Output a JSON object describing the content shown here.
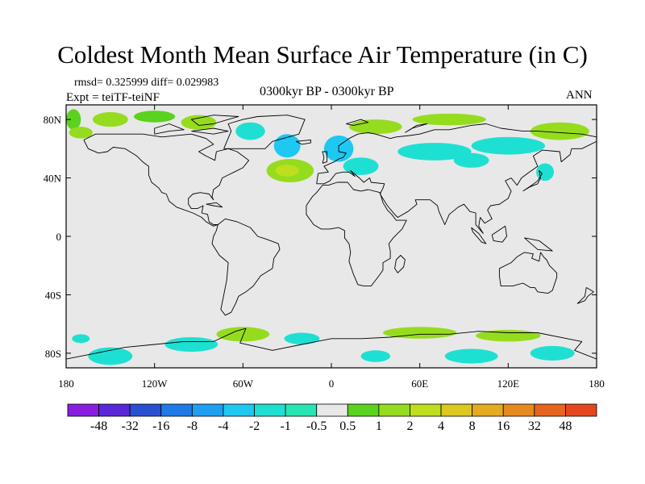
{
  "title": "Coldest Month Mean Surface Air Temperature (in C)",
  "stats": "rmsd= 0.325999  diff= 0.029983",
  "experiment": "Expt = teiTF-teiNF",
  "period": "0300kyr BP - 0300kyr BP",
  "season": "ANN",
  "map": {
    "lon_range": [
      -180,
      180
    ],
    "lat_range": [
      -90,
      90
    ],
    "background_color": "#e8e8e8",
    "lon_ticks": [
      {
        "value": -180,
        "label": "180"
      },
      {
        "value": -120,
        "label": "120W"
      },
      {
        "value": -60,
        "label": "60W"
      },
      {
        "value": 0,
        "label": "0"
      },
      {
        "value": 60,
        "label": "60E"
      },
      {
        "value": 120,
        "label": "120E"
      },
      {
        "value": 180,
        "label": "180"
      }
    ],
    "lat_ticks": [
      {
        "value": 80,
        "label": "80N"
      },
      {
        "value": 40,
        "label": "40N"
      },
      {
        "value": 0,
        "label": "0"
      },
      {
        "value": -40,
        "label": "40S"
      },
      {
        "value": -80,
        "label": "80S"
      }
    ]
  },
  "colorbar": {
    "colors": [
      "#8a1ee0",
      "#5a28d8",
      "#2850d0",
      "#1e7ae6",
      "#1ea0f0",
      "#1ec8f0",
      "#1ee0d2",
      "#28e6b4",
      "#e8e8e8",
      "#5ad21e",
      "#96dc1e",
      "#bede1e",
      "#dcc81e",
      "#e6aa1e",
      "#e68a1e",
      "#e6641e",
      "#e6461e"
    ],
    "labels": [
      "-48",
      "-32",
      "-16",
      "-8",
      "-4",
      "-2",
      "-1",
      "-0.5",
      "0.5",
      "1",
      "2",
      "4",
      "8",
      "16",
      "32",
      "48"
    ]
  },
  "anomaly_patches": [
    {
      "lon": -175,
      "lat": 80,
      "rx": 5,
      "ry": 7,
      "color": "#5ad21e"
    },
    {
      "lon": -150,
      "lat": 80,
      "rx": 12,
      "ry": 5,
      "color": "#96dc1e"
    },
    {
      "lon": -120,
      "lat": 82,
      "rx": 14,
      "ry": 4,
      "color": "#5ad21e"
    },
    {
      "lon": -170,
      "lat": 71,
      "rx": 8,
      "ry": 4,
      "color": "#96dc1e"
    },
    {
      "lon": -90,
      "lat": 78,
      "rx": 12,
      "ry": 5,
      "color": "#96dc1e"
    },
    {
      "lon": -55,
      "lat": 72,
      "rx": 10,
      "ry": 6,
      "color": "#1ee0d2"
    },
    {
      "lon": -30,
      "lat": 62,
      "rx": 9,
      "ry": 8,
      "color": "#1ec8f0"
    },
    {
      "lon": -28,
      "lat": 45,
      "rx": 16,
      "ry": 8,
      "color": "#96dc1e"
    },
    {
      "lon": -30,
      "lat": 45,
      "rx": 8,
      "ry": 4,
      "color": "#bede1e"
    },
    {
      "lon": 5,
      "lat": 60,
      "rx": 10,
      "ry": 9,
      "color": "#1ec8f0"
    },
    {
      "lon": 20,
      "lat": 48,
      "rx": 12,
      "ry": 6,
      "color": "#1ee0d2"
    },
    {
      "lon": 30,
      "lat": 75,
      "rx": 18,
      "ry": 5,
      "color": "#96dc1e"
    },
    {
      "lon": 70,
      "lat": 58,
      "rx": 25,
      "ry": 6,
      "color": "#1ee0d2"
    },
    {
      "lon": 95,
      "lat": 52,
      "rx": 12,
      "ry": 5,
      "color": "#1ee0d2"
    },
    {
      "lon": 120,
      "lat": 62,
      "rx": 25,
      "ry": 6,
      "color": "#1ee0d2"
    },
    {
      "lon": 155,
      "lat": 72,
      "rx": 20,
      "ry": 6,
      "color": "#96dc1e"
    },
    {
      "lon": 80,
      "lat": 80,
      "rx": 25,
      "ry": 4,
      "color": "#96dc1e"
    },
    {
      "lon": 145,
      "lat": 44,
      "rx": 6,
      "ry": 6,
      "color": "#1ee0d2"
    },
    {
      "lon": -150,
      "lat": -82,
      "rx": 15,
      "ry": 6,
      "color": "#1ee0d2"
    },
    {
      "lon": -95,
      "lat": -74,
      "rx": 18,
      "ry": 5,
      "color": "#1ee0d2"
    },
    {
      "lon": -60,
      "lat": -67,
      "rx": 18,
      "ry": 5,
      "color": "#96dc1e"
    },
    {
      "lon": -20,
      "lat": -70,
      "rx": 12,
      "ry": 4,
      "color": "#1ee0d2"
    },
    {
      "lon": 60,
      "lat": -66,
      "rx": 25,
      "ry": 4,
      "color": "#96dc1e"
    },
    {
      "lon": 120,
      "lat": -68,
      "rx": 22,
      "ry": 4,
      "color": "#96dc1e"
    },
    {
      "lon": 95,
      "lat": -82,
      "rx": 18,
      "ry": 5,
      "color": "#1ee0d2"
    },
    {
      "lon": 150,
      "lat": -80,
      "rx": 15,
      "ry": 5,
      "color": "#1ee0d2"
    },
    {
      "lon": -170,
      "lat": -70,
      "rx": 6,
      "ry": 3,
      "color": "#1ee0d2"
    },
    {
      "lon": 30,
      "lat": -82,
      "rx": 10,
      "ry": 4,
      "color": "#1ee0d2"
    }
  ],
  "coastlines": [
    [
      [
        -168,
        66
      ],
      [
        -160,
        70
      ],
      [
        -140,
        70
      ],
      [
        -128,
        70
      ],
      [
        -115,
        68
      ],
      [
        -95,
        70
      ],
      [
        -85,
        67
      ],
      [
        -80,
        63
      ],
      [
        -90,
        58
      ],
      [
        -85,
        55
      ],
      [
        -79,
        52
      ],
      [
        -78,
        58
      ],
      [
        -70,
        60
      ],
      [
        -64,
        58
      ],
      [
        -60,
        55
      ],
      [
        -56,
        52
      ],
      [
        -60,
        47
      ],
      [
        -66,
        44
      ],
      [
        -70,
        42
      ],
      [
        -74,
        40
      ],
      [
        -76,
        35
      ],
      [
        -80,
        32
      ],
      [
        -81,
        27
      ],
      [
        -80,
        25
      ],
      [
        -83,
        29
      ],
      [
        -89,
        30
      ],
      [
        -94,
        29
      ],
      [
        -97,
        26
      ],
      [
        -97,
        22
      ],
      [
        -95,
        19
      ],
      [
        -91,
        19
      ],
      [
        -87,
        21
      ],
      [
        -88,
        16
      ],
      [
        -84,
        15
      ],
      [
        -83,
        10
      ],
      [
        -80,
        8
      ],
      [
        -77,
        8
      ],
      [
        -80,
        7
      ],
      [
        -85,
        10
      ],
      [
        -88,
        13
      ],
      [
        -94,
        16
      ],
      [
        -105,
        20
      ],
      [
        -110,
        24
      ],
      [
        -112,
        29
      ],
      [
        -115,
        30
      ],
      [
        -117,
        33
      ],
      [
        -122,
        37
      ],
      [
        -124,
        42
      ],
      [
        -124,
        48
      ],
      [
        -128,
        51
      ],
      [
        -132,
        55
      ],
      [
        -140,
        60
      ],
      [
        -148,
        61
      ],
      [
        -152,
        58
      ],
      [
        -158,
        57
      ],
      [
        -165,
        60
      ],
      [
        -168,
        66
      ]
    ],
    [
      [
        -77,
        8
      ],
      [
        -72,
        12
      ],
      [
        -64,
        10
      ],
      [
        -55,
        6
      ],
      [
        -50,
        0
      ],
      [
        -44,
        -2
      ],
      [
        -36,
        -5
      ],
      [
        -35,
        -9
      ],
      [
        -39,
        -15
      ],
      [
        -40,
        -22
      ],
      [
        -48,
        -27
      ],
      [
        -53,
        -34
      ],
      [
        -58,
        -38
      ],
      [
        -63,
        -41
      ],
      [
        -65,
        -46
      ],
      [
        -68,
        -52
      ],
      [
        -72,
        -54
      ],
      [
        -75,
        -50
      ],
      [
        -73,
        -40
      ],
      [
        -71,
        -30
      ],
      [
        -70,
        -18
      ],
      [
        -76,
        -13
      ],
      [
        -81,
        -5
      ],
      [
        -80,
        0
      ],
      [
        -78,
        4
      ],
      [
        -77,
        8
      ]
    ],
    [
      [
        -10,
        36
      ],
      [
        -9,
        43
      ],
      [
        -2,
        44
      ],
      [
        -5,
        48
      ],
      [
        2,
        51
      ],
      [
        5,
        53
      ],
      [
        8,
        54
      ],
      [
        10,
        57
      ],
      [
        5,
        58
      ],
      [
        5,
        62
      ],
      [
        12,
        67
      ],
      [
        18,
        70
      ],
      [
        25,
        71
      ],
      [
        30,
        70
      ],
      [
        40,
        67
      ],
      [
        44,
        68
      ],
      [
        53,
        69
      ],
      [
        60,
        70
      ],
      [
        70,
        73
      ],
      [
        80,
        73
      ],
      [
        95,
        76
      ],
      [
        105,
        77
      ],
      [
        115,
        74
      ],
      [
        130,
        72
      ],
      [
        140,
        72
      ],
      [
        155,
        71
      ],
      [
        170,
        70
      ],
      [
        180,
        68
      ],
      [
        180,
        65
      ],
      [
        170,
        60
      ],
      [
        163,
        60
      ],
      [
        162,
        56
      ],
      [
        156,
        51
      ],
      [
        155,
        58
      ],
      [
        143,
        59
      ],
      [
        137,
        55
      ],
      [
        140,
        48
      ],
      [
        133,
        43
      ],
      [
        129,
        40
      ],
      [
        126,
        35
      ],
      [
        122,
        40
      ],
      [
        118,
        38
      ],
      [
        122,
        31
      ],
      [
        120,
        26
      ],
      [
        114,
        22
      ],
      [
        108,
        21
      ],
      [
        106,
        18
      ],
      [
        109,
        12
      ],
      [
        104,
        9
      ],
      [
        101,
        13
      ],
      [
        100,
        7
      ],
      [
        103,
        2
      ],
      [
        98,
        8
      ],
      [
        98,
        16
      ],
      [
        94,
        17
      ],
      [
        90,
        22
      ],
      [
        86,
        20
      ],
      [
        80,
        15
      ],
      [
        77,
        8
      ],
      [
        73,
        17
      ],
      [
        72,
        21
      ],
      [
        67,
        25
      ],
      [
        57,
        25
      ],
      [
        58,
        22
      ],
      [
        52,
        17
      ],
      [
        45,
        13
      ],
      [
        43,
        15
      ],
      [
        38,
        21
      ],
      [
        33,
        29
      ],
      [
        35,
        33
      ],
      [
        36,
        36
      ],
      [
        27,
        37
      ],
      [
        26,
        40
      ],
      [
        22,
        37
      ],
      [
        19,
        40
      ],
      [
        13,
        45
      ],
      [
        16,
        41
      ],
      [
        12,
        44
      ],
      [
        8,
        44
      ],
      [
        3,
        43
      ],
      [
        -1,
        38
      ],
      [
        -5,
        36
      ],
      [
        -10,
        36
      ]
    ],
    [
      [
        -17,
        21
      ],
      [
        -17,
        15
      ],
      [
        -12,
        8
      ],
      [
        -7,
        5
      ],
      [
        -1,
        5
      ],
      [
        5,
        6
      ],
      [
        9,
        4
      ],
      [
        9,
        -1
      ],
      [
        12,
        -5
      ],
      [
        13,
        -11
      ],
      [
        12,
        -17
      ],
      [
        15,
        -26
      ],
      [
        18,
        -33
      ],
      [
        22,
        -34
      ],
      [
        27,
        -34
      ],
      [
        33,
        -26
      ],
      [
        35,
        -23
      ],
      [
        35,
        -18
      ],
      [
        40,
        -15
      ],
      [
        40,
        -10
      ],
      [
        39,
        -5
      ],
      [
        42,
        -1
      ],
      [
        48,
        5
      ],
      [
        51,
        11
      ],
      [
        44,
        11
      ],
      [
        41,
        15
      ],
      [
        38,
        18
      ],
      [
        35,
        23
      ],
      [
        33,
        30
      ],
      [
        25,
        32
      ],
      [
        20,
        31
      ],
      [
        15,
        32
      ],
      [
        11,
        37
      ],
      [
        4,
        37
      ],
      [
        -2,
        35
      ],
      [
        -6,
        35
      ],
      [
        -10,
        30
      ],
      [
        -13,
        27
      ],
      [
        -17,
        21
      ]
    ],
    [
      [
        114,
        -22
      ],
      [
        114,
        -27
      ],
      [
        115,
        -34
      ],
      [
        123,
        -34
      ],
      [
        130,
        -32
      ],
      [
        135,
        -35
      ],
      [
        138,
        -35
      ],
      [
        140,
        -38
      ],
      [
        147,
        -39
      ],
      [
        150,
        -37
      ],
      [
        153,
        -28
      ],
      [
        153,
        -25
      ],
      [
        148,
        -20
      ],
      [
        146,
        -16
      ],
      [
        144,
        -14
      ],
      [
        142,
        -11
      ],
      [
        141,
        -17
      ],
      [
        136,
        -15
      ],
      [
        137,
        -12
      ],
      [
        131,
        -11
      ],
      [
        126,
        -14
      ],
      [
        122,
        -18
      ],
      [
        114,
        -22
      ]
    ],
    [
      [
        -73,
        60
      ],
      [
        -60,
        60
      ],
      [
        -45,
        60
      ],
      [
        -40,
        65
      ],
      [
        -22,
        70
      ],
      [
        -20,
        75
      ],
      [
        -18,
        80
      ],
      [
        -30,
        83
      ],
      [
        -50,
        82
      ],
      [
        -60,
        80
      ],
      [
        -70,
        77
      ],
      [
        -68,
        72
      ],
      [
        -73,
        60
      ]
    ],
    [
      [
        44,
        -16
      ],
      [
        47,
        -13
      ],
      [
        50,
        -16
      ],
      [
        49,
        -21
      ],
      [
        45,
        -25
      ],
      [
        43,
        -22
      ],
      [
        44,
        -16
      ]
    ],
    [
      [
        -6,
        50
      ],
      [
        -3,
        51
      ],
      [
        -3,
        58
      ],
      [
        -6,
        58
      ],
      [
        -5,
        54
      ],
      [
        -6,
        50
      ]
    ],
    [
      [
        -24,
        65
      ],
      [
        -14,
        66
      ],
      [
        -14,
        64
      ],
      [
        -20,
        63
      ],
      [
        -24,
        65
      ]
    ],
    [
      [
        130,
        31
      ],
      [
        135,
        34
      ],
      [
        140,
        36
      ],
      [
        142,
        40
      ],
      [
        141,
        45
      ],
      [
        143,
        43
      ],
      [
        140,
        38
      ],
      [
        136,
        35
      ],
      [
        130,
        31
      ]
    ],
    [
      [
        95,
        6
      ],
      [
        100,
        2
      ],
      [
        105,
        -5
      ],
      [
        102,
        -4
      ],
      [
        96,
        3
      ],
      [
        95,
        6
      ]
    ],
    [
      [
        109,
        1
      ],
      [
        118,
        7
      ],
      [
        119,
        0
      ],
      [
        116,
        -4
      ],
      [
        110,
        -3
      ],
      [
        109,
        1
      ]
    ],
    [
      [
        131,
        -1
      ],
      [
        141,
        -3
      ],
      [
        150,
        -10
      ],
      [
        140,
        -9
      ],
      [
        131,
        -1
      ]
    ],
    [
      [
        173,
        -35
      ],
      [
        178,
        -38
      ],
      [
        174,
        -41
      ],
      [
        172,
        -44
      ],
      [
        167,
        -46
      ],
      [
        172,
        -41
      ],
      [
        173,
        -35
      ]
    ],
    [
      [
        -180,
        -84
      ],
      [
        -160,
        -80
      ],
      [
        -140,
        -76
      ],
      [
        -120,
        -74
      ],
      [
        -100,
        -72
      ],
      [
        -80,
        -72
      ],
      [
        -65,
        -65
      ],
      [
        -58,
        -63
      ],
      [
        -60,
        -68
      ],
      [
        -62,
        -73
      ],
      [
        -40,
        -78
      ],
      [
        -20,
        -74
      ],
      [
        0,
        -70
      ],
      [
        20,
        -70
      ],
      [
        40,
        -69
      ],
      [
        60,
        -67
      ],
      [
        80,
        -67
      ],
      [
        100,
        -65
      ],
      [
        120,
        -66
      ],
      [
        140,
        -66
      ],
      [
        160,
        -70
      ],
      [
        170,
        -72
      ],
      [
        165,
        -78
      ],
      [
        180,
        -84
      ]
    ],
    [
      [
        -80,
        77
      ],
      [
        -70,
        80
      ],
      [
        -63,
        82
      ],
      [
        -80,
        83
      ],
      [
        -95,
        80
      ],
      [
        -90,
        76
      ],
      [
        -80,
        77
      ]
    ],
    [
      [
        -120,
        70
      ],
      [
        -110,
        72
      ],
      [
        -100,
        73
      ],
      [
        -110,
        77
      ],
      [
        -120,
        74
      ],
      [
        -120,
        70
      ]
    ],
    [
      [
        -95,
        72
      ],
      [
        -80,
        70
      ],
      [
        -70,
        72
      ],
      [
        -80,
        74
      ],
      [
        -95,
        72
      ]
    ],
    [
      [
        50,
        71
      ],
      [
        55,
        74
      ],
      [
        65,
        77
      ],
      [
        58,
        76
      ],
      [
        50,
        71
      ]
    ],
    [
      [
        10,
        77
      ],
      [
        20,
        80
      ],
      [
        25,
        78
      ],
      [
        15,
        76
      ],
      [
        10,
        77
      ]
    ],
    [
      [
        -85,
        22
      ],
      [
        -78,
        23
      ],
      [
        -74,
        20
      ],
      [
        -80,
        21
      ],
      [
        -85,
        22
      ]
    ]
  ]
}
